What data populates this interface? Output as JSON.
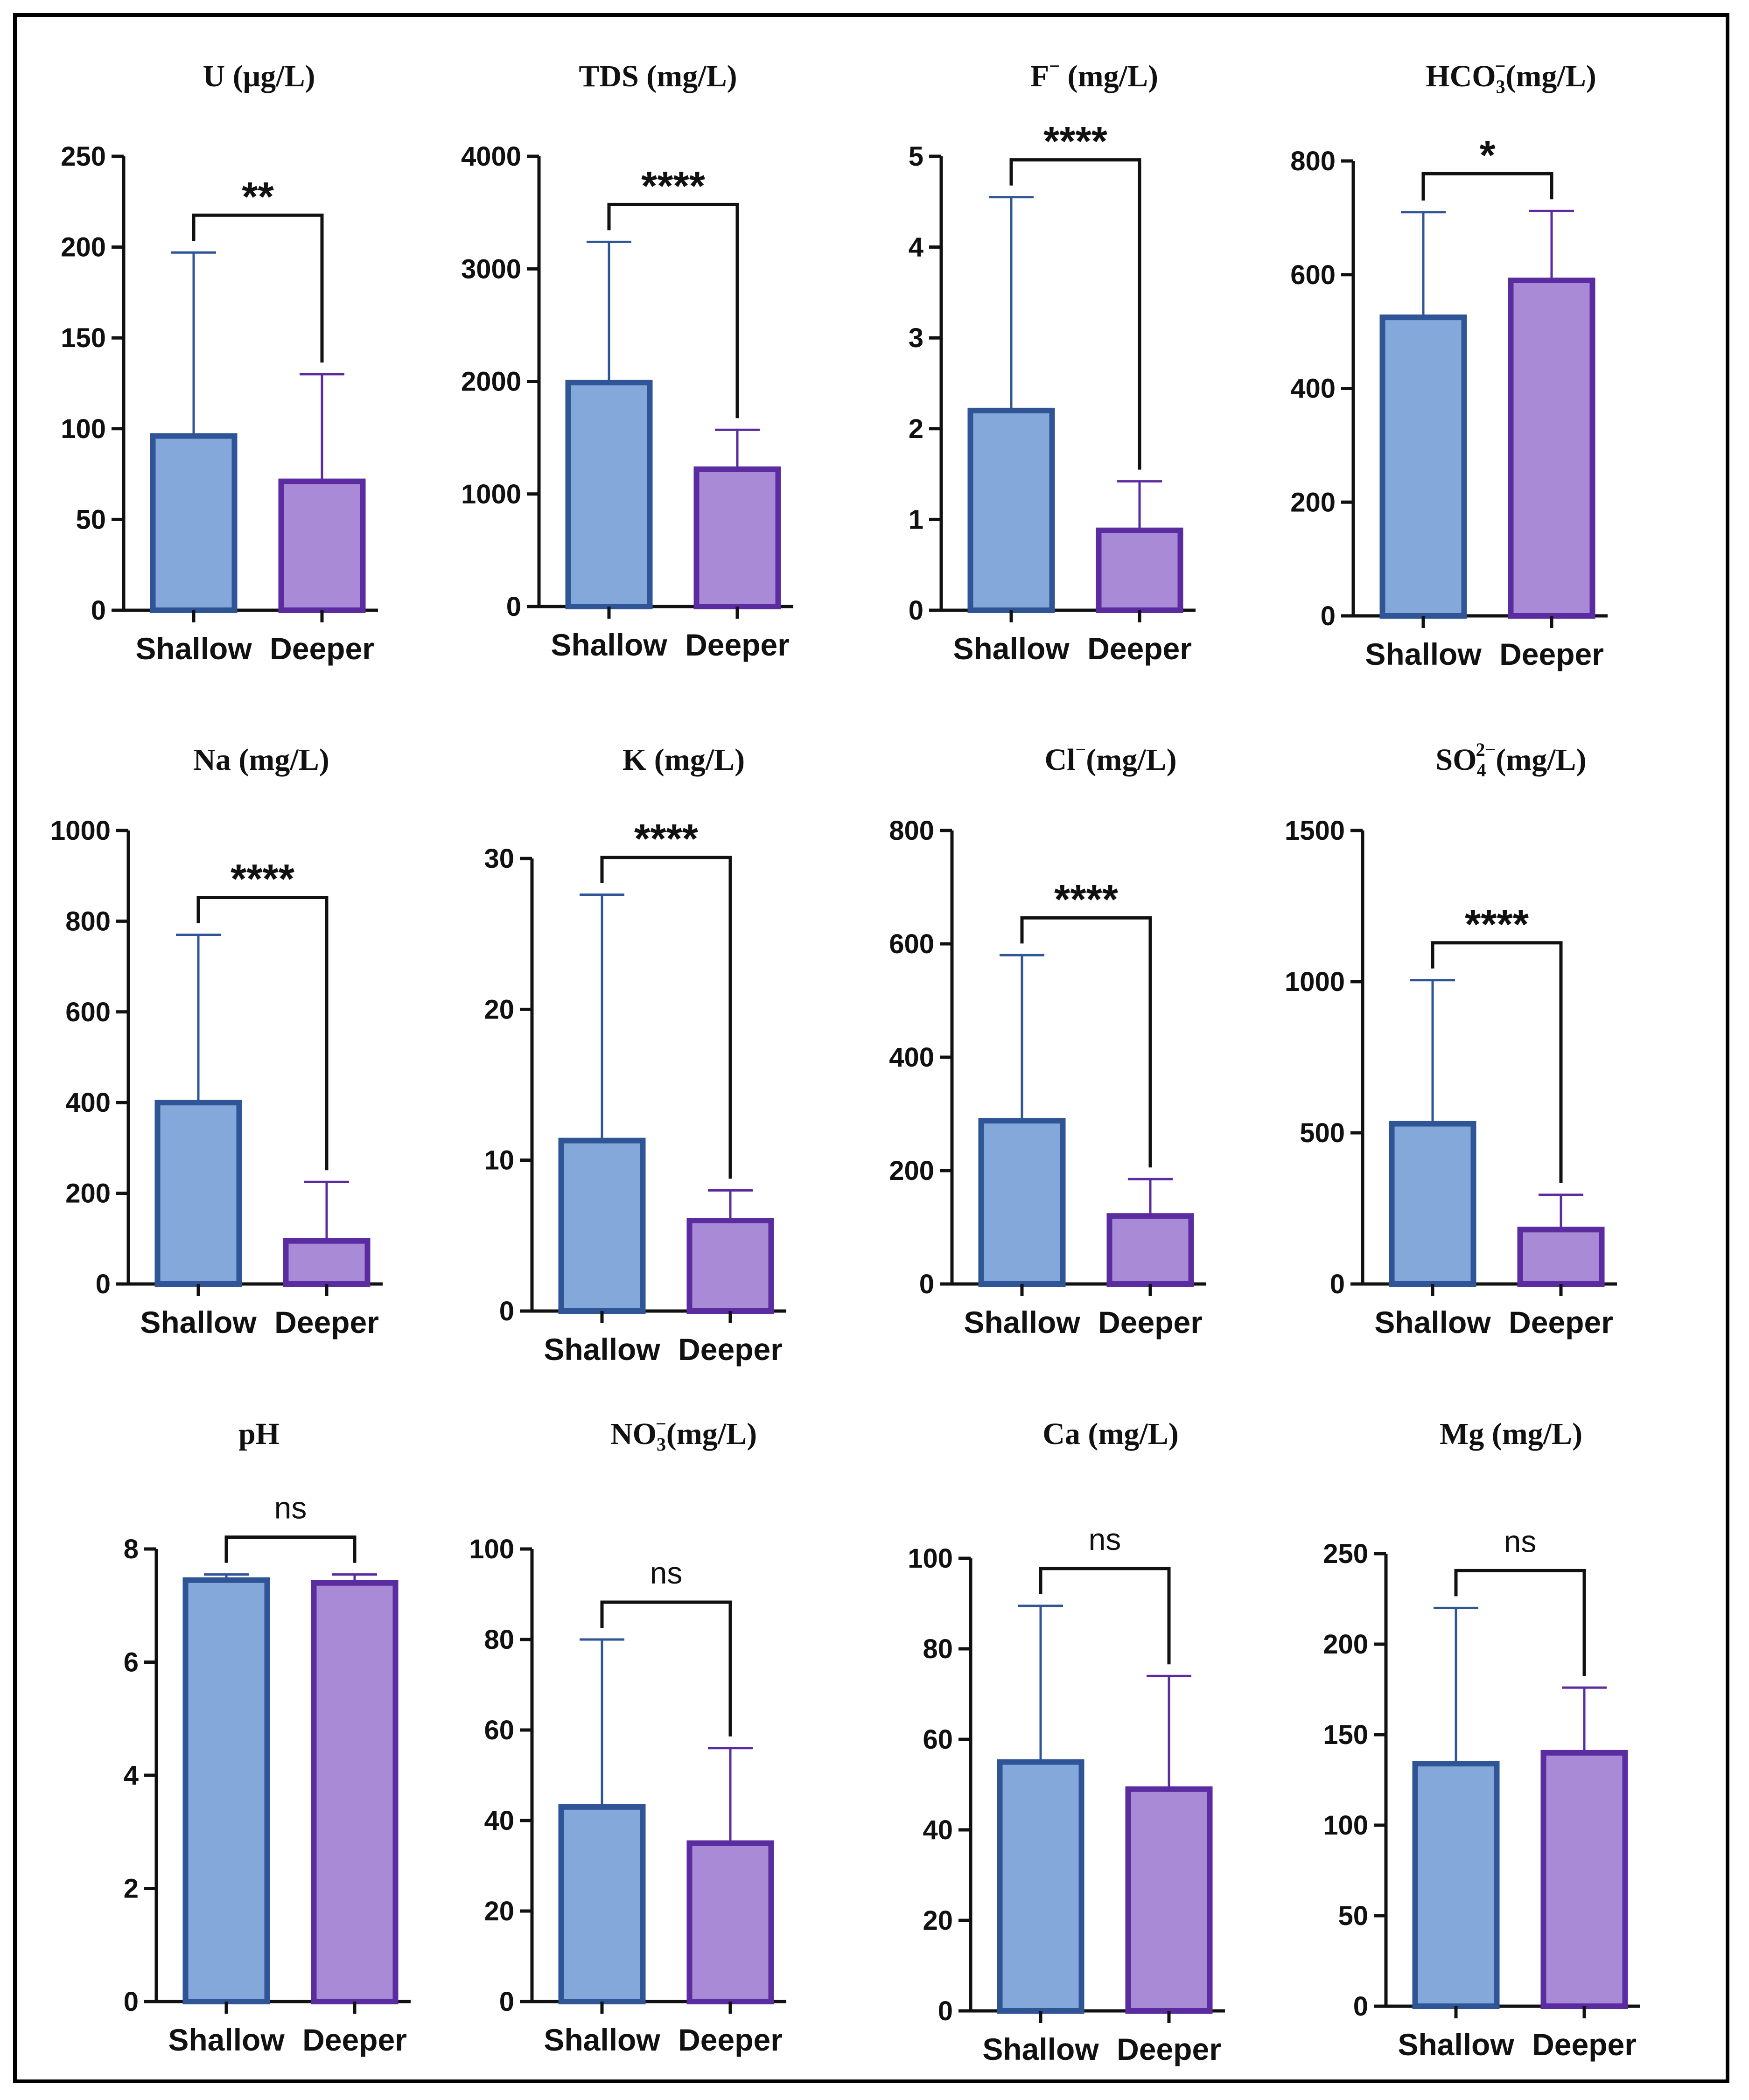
{
  "colors": {
    "shallow_fill": "#85A8DA",
    "shallow_edge": "#2F5597",
    "deeper_fill": "#A98AD6",
    "deeper_edge": "#5A2CA0",
    "axis": "#111111"
  },
  "chart_data": [
    {
      "type": "bar",
      "title": "U (μg/L)",
      "categories": [
        "Shallow",
        "Deeper"
      ],
      "values": [
        96,
        71
      ],
      "error_upper": [
        197,
        130
      ],
      "ylim": [
        0,
        250
      ],
      "yticks": [
        0,
        50,
        100,
        150,
        200,
        250
      ],
      "significance": "**"
    },
    {
      "type": "bar",
      "title": "TDS (mg/L)",
      "categories": [
        "Shallow",
        "Deeper"
      ],
      "values": [
        1990,
        1220
      ],
      "error_upper": [
        3240,
        1570
      ],
      "ylim": [
        0,
        4000
      ],
      "yticks": [
        0,
        1000,
        2000,
        3000,
        4000
      ],
      "significance": "****"
    },
    {
      "type": "bar",
      "title": "F",
      "title_sup": "−",
      "title_rest": " (mg/L)",
      "categories": [
        "Shallow",
        "Deeper"
      ],
      "values": [
        2.2,
        0.88
      ],
      "error_upper": [
        4.55,
        1.42
      ],
      "ylim": [
        0,
        5
      ],
      "yticks": [
        0,
        1,
        2,
        3,
        4,
        5
      ],
      "significance": "****"
    },
    {
      "type": "bar",
      "title": "HCO",
      "title_sub": "3",
      "title_sup": "−",
      "title_rest": "(mg/L)",
      "categories": [
        "Shallow",
        "Deeper"
      ],
      "values": [
        525,
        590
      ],
      "error_upper": [
        710,
        712
      ],
      "ylim": [
        0,
        800
      ],
      "yticks": [
        0,
        200,
        400,
        600,
        800
      ],
      "significance": "*"
    },
    {
      "type": "bar",
      "title": "Na (mg/L)",
      "categories": [
        "Shallow",
        "Deeper"
      ],
      "values": [
        400,
        95
      ],
      "error_upper": [
        770,
        225
      ],
      "ylim": [
        0,
        1000
      ],
      "yticks": [
        0,
        200,
        400,
        600,
        800,
        1000
      ],
      "significance": "****"
    },
    {
      "type": "bar",
      "title": "K (mg/L)",
      "categories": [
        "Shallow",
        "Deeper"
      ],
      "values": [
        11.3,
        6.0
      ],
      "error_upper": [
        27.6,
        8.0
      ],
      "ylim": [
        0,
        30
      ],
      "yticks": [
        0,
        10,
        20,
        30
      ],
      "significance": "****"
    },
    {
      "type": "bar",
      "title": "Cl",
      "title_sup": "−",
      "title_rest": "(mg/L)",
      "categories": [
        "Shallow",
        "Deeper"
      ],
      "values": [
        288,
        120
      ],
      "error_upper": [
        580,
        185
      ],
      "ylim": [
        0,
        800
      ],
      "yticks": [
        0,
        200,
        400,
        600,
        800
      ],
      "significance": "****"
    },
    {
      "type": "bar",
      "title": "SO",
      "title_sub": "4",
      "title_sup": "2−",
      "title_rest": "(mg/L)",
      "categories": [
        "Shallow",
        "Deeper"
      ],
      "values": [
        530,
        180
      ],
      "error_upper": [
        1005,
        295
      ],
      "ylim": [
        0,
        1500
      ],
      "yticks": [
        0,
        500,
        1000,
        1500
      ],
      "significance": "****"
    },
    {
      "type": "bar",
      "title": "pH",
      "categories": [
        "Shallow",
        "Deeper"
      ],
      "values": [
        7.45,
        7.4
      ],
      "error_upper": [
        7.55,
        7.55
      ],
      "ylim": [
        0,
        8
      ],
      "yticks": [
        0,
        2,
        4,
        6,
        8
      ],
      "significance": "ns"
    },
    {
      "type": "bar",
      "title": "NO",
      "title_sub": "3",
      "title_sup": "−",
      "title_rest": "(mg/L)",
      "categories": [
        "Shallow",
        "Deeper"
      ],
      "values": [
        43,
        35
      ],
      "error_upper": [
        80,
        56
      ],
      "ylim": [
        0,
        100
      ],
      "yticks": [
        0,
        20,
        40,
        60,
        80,
        100
      ],
      "significance": "ns"
    },
    {
      "type": "bar",
      "title": "Ca (mg/L)",
      "categories": [
        "Shallow",
        "Deeper"
      ],
      "values": [
        55,
        49
      ],
      "error_upper": [
        89.5,
        74
      ],
      "ylim": [
        0,
        100
      ],
      "yticks": [
        0,
        20,
        40,
        60,
        80,
        100
      ],
      "significance": "ns"
    },
    {
      "type": "bar",
      "title": "Mg (mg/L)",
      "categories": [
        "Shallow",
        "Deeper"
      ],
      "values": [
        134,
        140
      ],
      "error_upper": [
        220,
        176
      ],
      "ylim": [
        0,
        250
      ],
      "yticks": [
        0,
        50,
        100,
        150,
        200,
        250
      ],
      "significance": "ns"
    }
  ]
}
